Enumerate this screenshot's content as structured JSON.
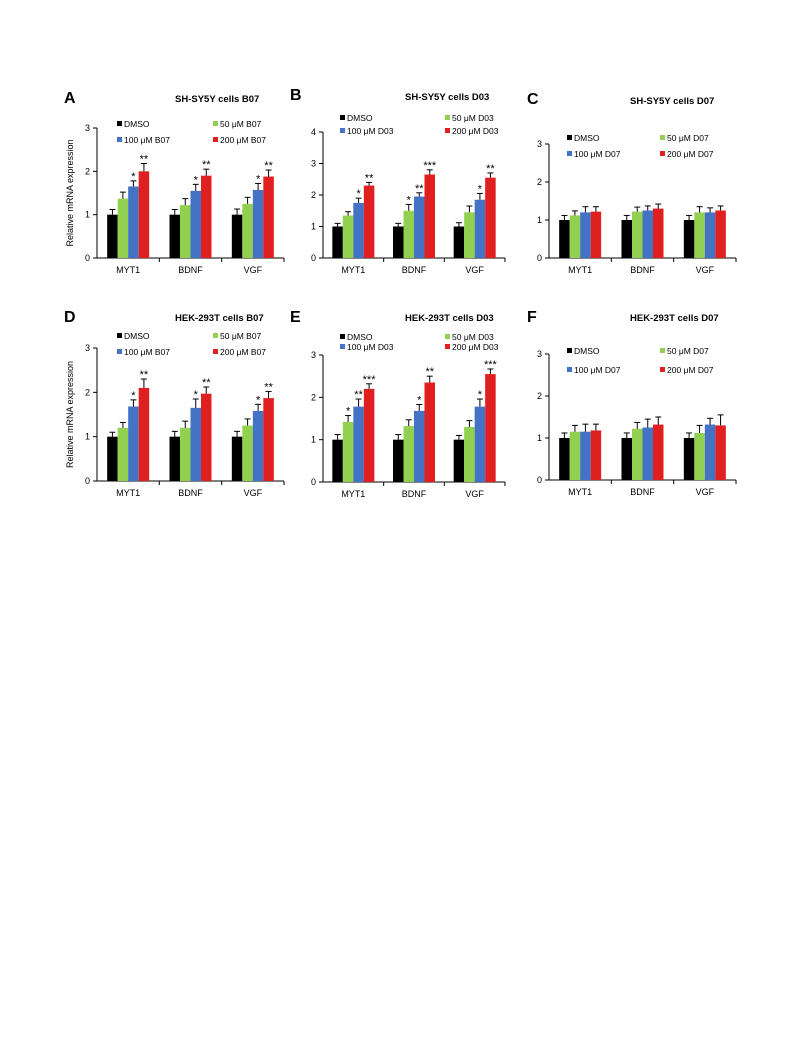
{
  "colors": {
    "DMSO": "#000000",
    "50": "#92d050",
    "100": "#4472c4",
    "200": "#e02020",
    "axis": "#000000"
  },
  "y_axis_title": "Relative mRNA expression",
  "chart_data": [
    {
      "panel": "A",
      "type": "bar",
      "title": "SH-SY5Y cells    B07",
      "ylabel": "Relative mRNA expression",
      "ylim": [
        0,
        3
      ],
      "yticks": [
        0,
        1,
        2,
        3
      ],
      "legend": "top",
      "grid": false,
      "categories": [
        "MYT1",
        "BDNF",
        "VGF"
      ],
      "series": [
        {
          "name": "DMSO",
          "values": [
            1.0,
            1.0,
            1.0
          ],
          "errors": [
            0.12,
            0.12,
            0.13
          ],
          "sig": [
            "",
            "",
            ""
          ]
        },
        {
          "name": "50 μM B07",
          "values": [
            1.37,
            1.22,
            1.25
          ],
          "errors": [
            0.15,
            0.15,
            0.15
          ],
          "sig": [
            "",
            "",
            ""
          ]
        },
        {
          "name": "100 μM B07",
          "values": [
            1.65,
            1.55,
            1.57
          ],
          "errors": [
            0.13,
            0.15,
            0.15
          ],
          "sig": [
            "*",
            "*",
            "*"
          ]
        },
        {
          "name": "200 μM B07",
          "values": [
            2.0,
            1.9,
            1.88
          ],
          "errors": [
            0.18,
            0.15,
            0.15
          ],
          "sig": [
            "**",
            "**",
            "**"
          ]
        }
      ]
    },
    {
      "panel": "B",
      "type": "bar",
      "title": "SH-SY5Y cells    D03",
      "ylabel": "",
      "ylim": [
        0,
        4
      ],
      "yticks": [
        0,
        1,
        2,
        3,
        4
      ],
      "legend": "top",
      "grid": false,
      "categories": [
        "MYT1",
        "BDNF",
        "VGF"
      ],
      "series": [
        {
          "name": "DMSO",
          "values": [
            1.0,
            1.0,
            1.0
          ],
          "errors": [
            0.1,
            0.1,
            0.12
          ],
          "sig": [
            "",
            "",
            ""
          ]
        },
        {
          "name": "50 μM D03",
          "values": [
            1.35,
            1.5,
            1.45
          ],
          "errors": [
            0.12,
            0.2,
            0.2
          ],
          "sig": [
            "",
            "*",
            ""
          ]
        },
        {
          "name": "100 μM D03",
          "values": [
            1.75,
            1.95,
            1.85
          ],
          "errors": [
            0.15,
            0.12,
            0.2
          ],
          "sig": [
            "*",
            "**",
            "*"
          ]
        },
        {
          "name": "200 μM D03",
          "values": [
            2.3,
            2.65,
            2.55
          ],
          "errors": [
            0.1,
            0.15,
            0.15
          ],
          "sig": [
            "**",
            "***",
            "**"
          ]
        }
      ]
    },
    {
      "panel": "C",
      "type": "bar",
      "title": "SH-SY5Y cells    D07",
      "ylabel": "",
      "ylim": [
        0,
        3
      ],
      "yticks": [
        0,
        1,
        2,
        3
      ],
      "legend": "top",
      "grid": false,
      "categories": [
        "MYT1",
        "BDNF",
        "VGF"
      ],
      "series": [
        {
          "name": "DMSO",
          "values": [
            1.0,
            1.0,
            1.0
          ],
          "errors": [
            0.12,
            0.12,
            0.12
          ],
          "sig": [
            "",
            "",
            ""
          ]
        },
        {
          "name": "50 μM D07",
          "values": [
            1.12,
            1.22,
            1.2
          ],
          "errors": [
            0.12,
            0.12,
            0.15
          ],
          "sig": [
            "",
            "",
            ""
          ]
        },
        {
          "name": "100 μM D07",
          "values": [
            1.2,
            1.25,
            1.2
          ],
          "errors": [
            0.15,
            0.12,
            0.12
          ],
          "sig": [
            "",
            "",
            ""
          ]
        },
        {
          "name": "200 μM D07",
          "values": [
            1.22,
            1.3,
            1.25
          ],
          "errors": [
            0.13,
            0.12,
            0.12
          ],
          "sig": [
            "",
            "",
            ""
          ]
        }
      ]
    },
    {
      "panel": "D",
      "type": "bar",
      "title": "HEK-293T cells    B07",
      "ylabel": "Relative mRNA expression",
      "ylim": [
        0,
        3
      ],
      "yticks": [
        0,
        1,
        2,
        3
      ],
      "legend": "top",
      "grid": false,
      "categories": [
        "MYT1",
        "BDNF",
        "VGF"
      ],
      "series": [
        {
          "name": "DMSO",
          "values": [
            1.0,
            1.0,
            1.0
          ],
          "errors": [
            0.1,
            0.12,
            0.12
          ],
          "sig": [
            "",
            "",
            ""
          ]
        },
        {
          "name": "50 μM B07",
          "values": [
            1.2,
            1.2,
            1.25
          ],
          "errors": [
            0.12,
            0.15,
            0.15
          ],
          "sig": [
            "",
            "",
            ""
          ]
        },
        {
          "name": "100 μM B07",
          "values": [
            1.68,
            1.65,
            1.58
          ],
          "errors": [
            0.15,
            0.2,
            0.15
          ],
          "sig": [
            "*",
            "*",
            "*"
          ]
        },
        {
          "name": "200 μM B07",
          "values": [
            2.1,
            1.97,
            1.87
          ],
          "errors": [
            0.2,
            0.15,
            0.15
          ],
          "sig": [
            "**",
            "**",
            "**"
          ]
        }
      ]
    },
    {
      "panel": "E",
      "type": "bar",
      "title": "HEK-293T cells    D03",
      "ylabel": "",
      "ylim": [
        0,
        3
      ],
      "yticks": [
        0,
        1,
        2,
        3
      ],
      "legend": "top",
      "grid": false,
      "categories": [
        "MYT1",
        "BDNF",
        "VGF"
      ],
      "series": [
        {
          "name": "DMSO",
          "values": [
            1.0,
            1.0,
            1.0
          ],
          "errors": [
            0.12,
            0.12,
            0.1
          ],
          "sig": [
            "",
            "",
            ""
          ]
        },
        {
          "name": "50 μM D03",
          "values": [
            1.42,
            1.32,
            1.3
          ],
          "errors": [
            0.15,
            0.15,
            0.15
          ],
          "sig": [
            "*",
            "",
            ""
          ]
        },
        {
          "name": "100 μM D03",
          "values": [
            1.78,
            1.68,
            1.78
          ],
          "errors": [
            0.18,
            0.15,
            0.18
          ],
          "sig": [
            "**",
            "*",
            "*"
          ]
        },
        {
          "name": "200 μM D03",
          "values": [
            2.2,
            2.35,
            2.55
          ],
          "errors": [
            0.12,
            0.15,
            0.12
          ],
          "sig": [
            "***",
            "**",
            "***"
          ]
        }
      ]
    },
    {
      "panel": "F",
      "type": "bar",
      "title": "HEK-293T cells    D07",
      "ylabel": "",
      "ylim": [
        0,
        3
      ],
      "yticks": [
        0,
        1,
        2,
        3
      ],
      "legend": "top",
      "grid": false,
      "categories": [
        "MYT1",
        "BDNF",
        "VGF"
      ],
      "series": [
        {
          "name": "DMSO",
          "values": [
            1.0,
            1.0,
            1.0
          ],
          "errors": [
            0.12,
            0.12,
            0.12
          ],
          "sig": [
            "",
            "",
            ""
          ]
        },
        {
          "name": "50 μM D07",
          "values": [
            1.15,
            1.22,
            1.12
          ],
          "errors": [
            0.15,
            0.15,
            0.18
          ],
          "sig": [
            "",
            "",
            ""
          ]
        },
        {
          "name": "100 μM D07",
          "values": [
            1.15,
            1.25,
            1.32
          ],
          "errors": [
            0.18,
            0.2,
            0.15
          ],
          "sig": [
            "",
            "",
            ""
          ]
        },
        {
          "name": "200 μM D07",
          "values": [
            1.18,
            1.32,
            1.3
          ],
          "errors": [
            0.15,
            0.18,
            0.25
          ],
          "sig": [
            "",
            "",
            ""
          ]
        }
      ]
    }
  ]
}
